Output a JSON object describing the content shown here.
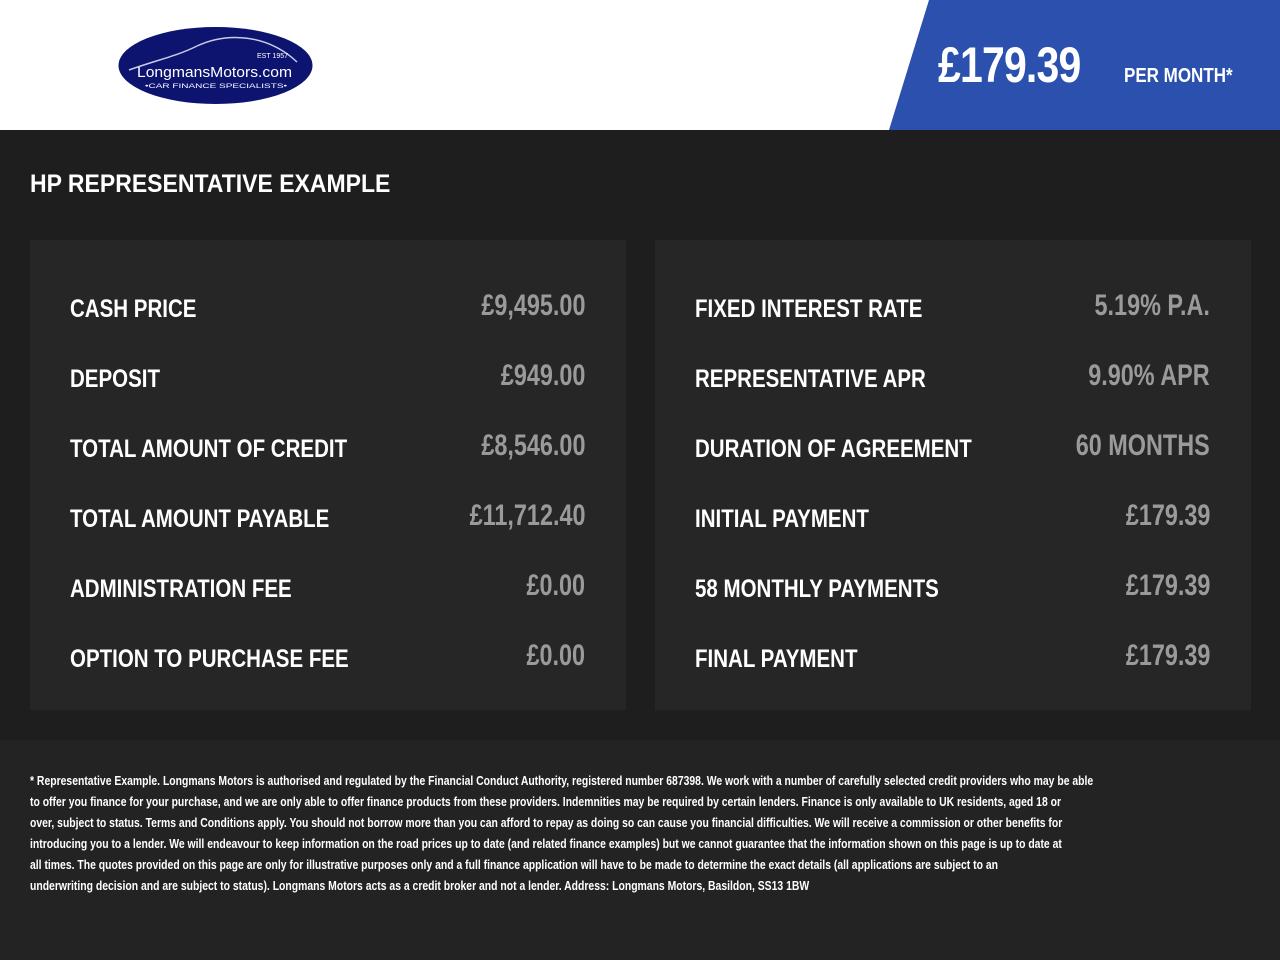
{
  "header": {
    "logo": {
      "text": "LongmansMotors.com",
      "est": "EST 1957",
      "tagline": "•CAR FINANCE SPECIALISTS•"
    },
    "monthly_price": "£179.39",
    "per_month_label": "PER MONTH*",
    "accent_color": "#2b50ad"
  },
  "main": {
    "title": "HP REPRESENTATIVE EXAMPLE",
    "left_rows": [
      {
        "label": "CASH PRICE",
        "value": "£9,495.00"
      },
      {
        "label": "DEPOSIT",
        "value": "£949.00"
      },
      {
        "label": "TOTAL AMOUNT OF CREDIT",
        "value": "£8,546.00"
      },
      {
        "label": "TOTAL AMOUNT PAYABLE",
        "value": "£11,712.40"
      },
      {
        "label": "ADMINISTRATION FEE",
        "value": "£0.00"
      },
      {
        "label": "OPTION TO PURCHASE FEE",
        "value": "£0.00"
      }
    ],
    "right_rows": [
      {
        "label": "FIXED INTEREST RATE",
        "value": "5.19% P.A."
      },
      {
        "label": "REPRESENTATIVE APR",
        "value": "9.90% APR"
      },
      {
        "label": "DURATION OF AGREEMENT",
        "value": "60 MONTHS"
      },
      {
        "label": "INITIAL PAYMENT",
        "value": "£179.39"
      },
      {
        "label": "58 MONTHLY PAYMENTS",
        "value": "£179.39"
      },
      {
        "label": "FINAL PAYMENT",
        "value": "£179.39"
      }
    ]
  },
  "disclaimer": {
    "lines": [
      "* Representative Example. Longmans Motors is authorised and regulated by the Financial Conduct Authority, registered number 687398. We work with a number of carefully selected credit providers who may be able",
      "to offer you finance for your purchase, and we are only able to offer finance products from these providers. Indemnities may be required by certain lenders. Finance is only available to UK residents, aged 18 or",
      "over, subject to status. Terms and Conditions apply. You should not borrow more than you can afford to repay as doing so can cause you financial difficulties. We will receive a commission or other benefits for",
      "introducing you to a lender. We will endeavour to keep information on the road prices up to date (and related finance examples) but we cannot guarantee that the information shown on this page is up to date at",
      "all times. The quotes provided on this page are only for illustrative purposes only and a full finance application will have to be made to determine the exact details (all applications are subject to an",
      "underwriting decision and are subject to status). Longmans Motors acts as a credit broker and not a lender. Address: Longmans Motors, Basildon, SS13 1BW"
    ]
  }
}
